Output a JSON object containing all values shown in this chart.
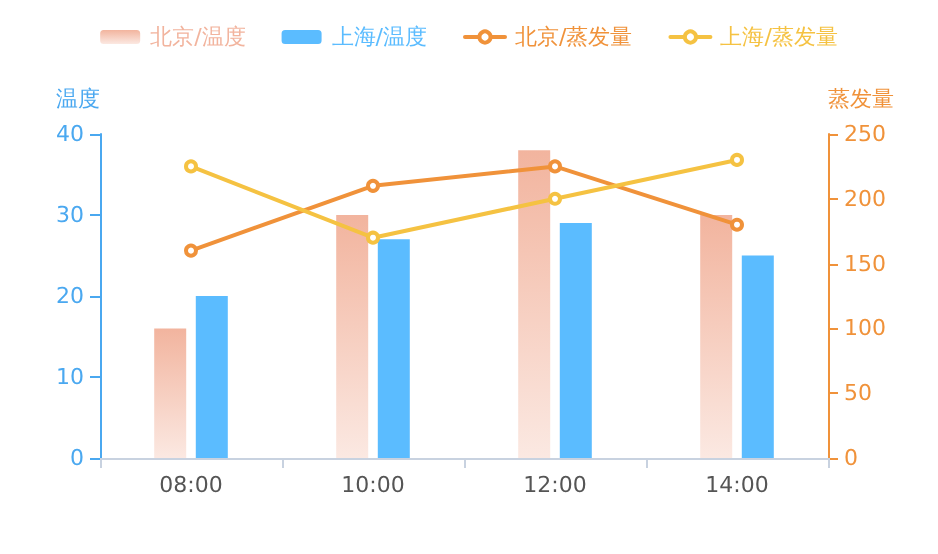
{
  "chart_data": {
    "type": "bar",
    "categories": [
      "08:00",
      "10:00",
      "12:00",
      "14:00"
    ],
    "ylabel": "温度",
    "y2label": "蒸发量",
    "ylim": [
      0,
      40
    ],
    "yticks": [
      0,
      10,
      20,
      30,
      40
    ],
    "y2lim": [
      0,
      250
    ],
    "y2ticks": [
      0,
      50,
      100,
      150,
      200,
      250
    ],
    "series": [
      {
        "name": "北京/温度",
        "color": "#f2b49e",
        "values": [
          16,
          30,
          38,
          30
        ]
      },
      {
        "name": "上海/温度",
        "color": "#5bbcff",
        "values": [
          20,
          27,
          29,
          25
        ]
      },
      {
        "name": "北京/蒸发量",
        "type": "line",
        "axis": "y2",
        "color": "#f0923a",
        "values": [
          160,
          210,
          225,
          180
        ]
      },
      {
        "name": "上海/蒸发量",
        "type": "line",
        "axis": "y2",
        "color": "#f5c242",
        "values": [
          225,
          170,
          200,
          230
        ]
      }
    ],
    "grid": false,
    "legend": "top",
    "marker": "circle",
    "line_style": "solid"
  }
}
